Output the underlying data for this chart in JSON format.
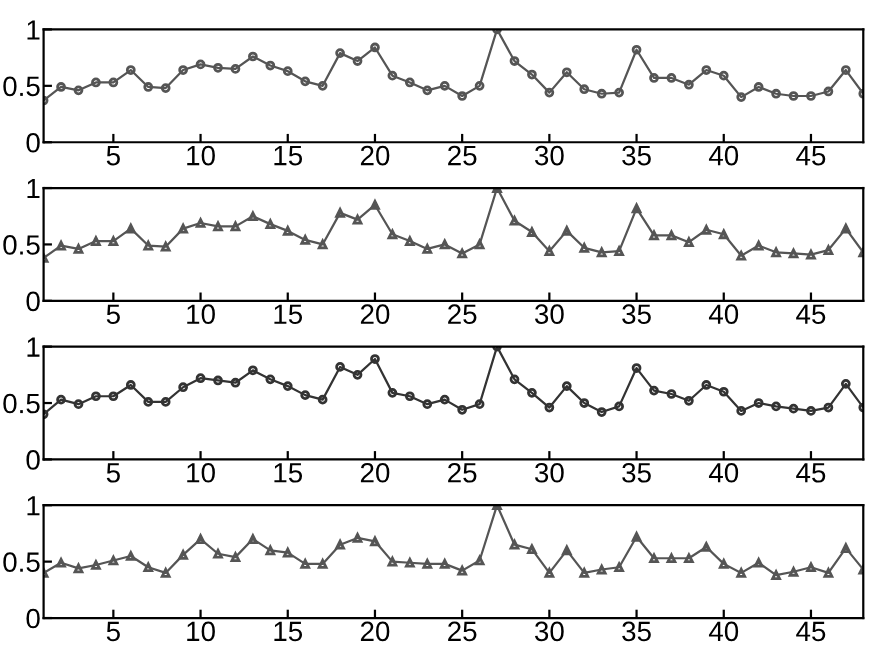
{
  "chart_data": [
    {
      "type": "line",
      "marker": "circle",
      "color": "#555555",
      "x": [
        1,
        2,
        3,
        4,
        5,
        6,
        7,
        8,
        9,
        10,
        11,
        12,
        13,
        14,
        15,
        16,
        17,
        18,
        19,
        20,
        21,
        22,
        23,
        24,
        25,
        26,
        27,
        28,
        29,
        30,
        31,
        32,
        33,
        34,
        35,
        36,
        37,
        38,
        39,
        40,
        41,
        42,
        43,
        44,
        45,
        46,
        47,
        48
      ],
      "xlim": [
        1,
        48
      ],
      "xticks": [
        5,
        10,
        15,
        20,
        25,
        30,
        35,
        40,
        45
      ],
      "ylim": [
        0,
        1
      ],
      "yticks": [
        0,
        0.5,
        1
      ],
      "values": [
        0.37,
        0.49,
        0.46,
        0.53,
        0.53,
        0.64,
        0.49,
        0.48,
        0.64,
        0.69,
        0.66,
        0.65,
        0.76,
        0.68,
        0.63,
        0.54,
        0.5,
        0.79,
        0.72,
        0.84,
        0.59,
        0.53,
        0.46,
        0.5,
        0.41,
        0.5,
        1.0,
        0.72,
        0.6,
        0.44,
        0.62,
        0.47,
        0.43,
        0.44,
        0.82,
        0.57,
        0.57,
        0.51,
        0.64,
        0.59,
        0.4,
        0.49,
        0.43,
        0.41,
        0.41,
        0.45,
        0.64,
        0.43
      ]
    },
    {
      "type": "line",
      "marker": "triangle",
      "color": "#555555",
      "x": [
        1,
        2,
        3,
        4,
        5,
        6,
        7,
        8,
        9,
        10,
        11,
        12,
        13,
        14,
        15,
        16,
        17,
        18,
        19,
        20,
        21,
        22,
        23,
        24,
        25,
        26,
        27,
        28,
        29,
        30,
        31,
        32,
        33,
        34,
        35,
        36,
        37,
        38,
        39,
        40,
        41,
        42,
        43,
        44,
        45,
        46,
        47,
        48
      ],
      "xlim": [
        1,
        48
      ],
      "xticks": [
        5,
        10,
        15,
        20,
        25,
        30,
        35,
        40,
        45
      ],
      "ylim": [
        0,
        1
      ],
      "yticks": [
        0,
        0.5,
        1
      ],
      "values": [
        0.38,
        0.49,
        0.46,
        0.53,
        0.53,
        0.64,
        0.49,
        0.48,
        0.64,
        0.69,
        0.66,
        0.66,
        0.75,
        0.68,
        0.62,
        0.54,
        0.5,
        0.78,
        0.72,
        0.85,
        0.59,
        0.53,
        0.46,
        0.5,
        0.42,
        0.5,
        1.0,
        0.71,
        0.61,
        0.44,
        0.62,
        0.47,
        0.43,
        0.44,
        0.82,
        0.58,
        0.58,
        0.52,
        0.63,
        0.59,
        0.4,
        0.49,
        0.43,
        0.42,
        0.41,
        0.45,
        0.64,
        0.43
      ]
    },
    {
      "type": "line",
      "marker": "circle",
      "color": "#333333",
      "x": [
        1,
        2,
        3,
        4,
        5,
        6,
        7,
        8,
        9,
        10,
        11,
        12,
        13,
        14,
        15,
        16,
        17,
        18,
        19,
        20,
        21,
        22,
        23,
        24,
        25,
        26,
        27,
        28,
        29,
        30,
        31,
        32,
        33,
        34,
        35,
        36,
        37,
        38,
        39,
        40,
        41,
        42,
        43,
        44,
        45,
        46,
        47,
        48
      ],
      "xlim": [
        1,
        48
      ],
      "xticks": [
        5,
        10,
        15,
        20,
        25,
        30,
        35,
        40,
        45
      ],
      "ylim": [
        0,
        1
      ],
      "yticks": [
        0,
        0.5,
        1
      ],
      "values": [
        0.4,
        0.53,
        0.49,
        0.56,
        0.56,
        0.66,
        0.51,
        0.51,
        0.64,
        0.72,
        0.7,
        0.68,
        0.79,
        0.71,
        0.65,
        0.57,
        0.53,
        0.82,
        0.75,
        0.89,
        0.59,
        0.56,
        0.49,
        0.53,
        0.44,
        0.49,
        1.0,
        0.71,
        0.59,
        0.46,
        0.65,
        0.5,
        0.42,
        0.47,
        0.81,
        0.61,
        0.58,
        0.52,
        0.66,
        0.6,
        0.43,
        0.5,
        0.47,
        0.45,
        0.43,
        0.46,
        0.67,
        0.46
      ]
    },
    {
      "type": "line",
      "marker": "triangle",
      "color": "#555555",
      "x": [
        1,
        2,
        3,
        4,
        5,
        6,
        7,
        8,
        9,
        10,
        11,
        12,
        13,
        14,
        15,
        16,
        17,
        18,
        19,
        20,
        21,
        22,
        23,
        24,
        25,
        26,
        27,
        28,
        29,
        30,
        31,
        32,
        33,
        34,
        35,
        36,
        37,
        38,
        39,
        40,
        41,
        42,
        43,
        44,
        45,
        46,
        47,
        48
      ],
      "xlim": [
        1,
        48
      ],
      "xticks": [
        5,
        10,
        15,
        20,
        25,
        30,
        35,
        40,
        45
      ],
      "ylim": [
        0,
        1
      ],
      "yticks": [
        0,
        0.5,
        1
      ],
      "values": [
        0.4,
        0.49,
        0.44,
        0.47,
        0.51,
        0.55,
        0.45,
        0.4,
        0.56,
        0.7,
        0.57,
        0.54,
        0.7,
        0.6,
        0.58,
        0.48,
        0.48,
        0.65,
        0.71,
        0.68,
        0.5,
        0.49,
        0.48,
        0.48,
        0.42,
        0.51,
        1.0,
        0.65,
        0.61,
        0.4,
        0.6,
        0.4,
        0.43,
        0.45,
        0.72,
        0.53,
        0.53,
        0.53,
        0.63,
        0.48,
        0.4,
        0.49,
        0.38,
        0.41,
        0.45,
        0.4,
        0.62,
        0.43
      ]
    }
  ]
}
